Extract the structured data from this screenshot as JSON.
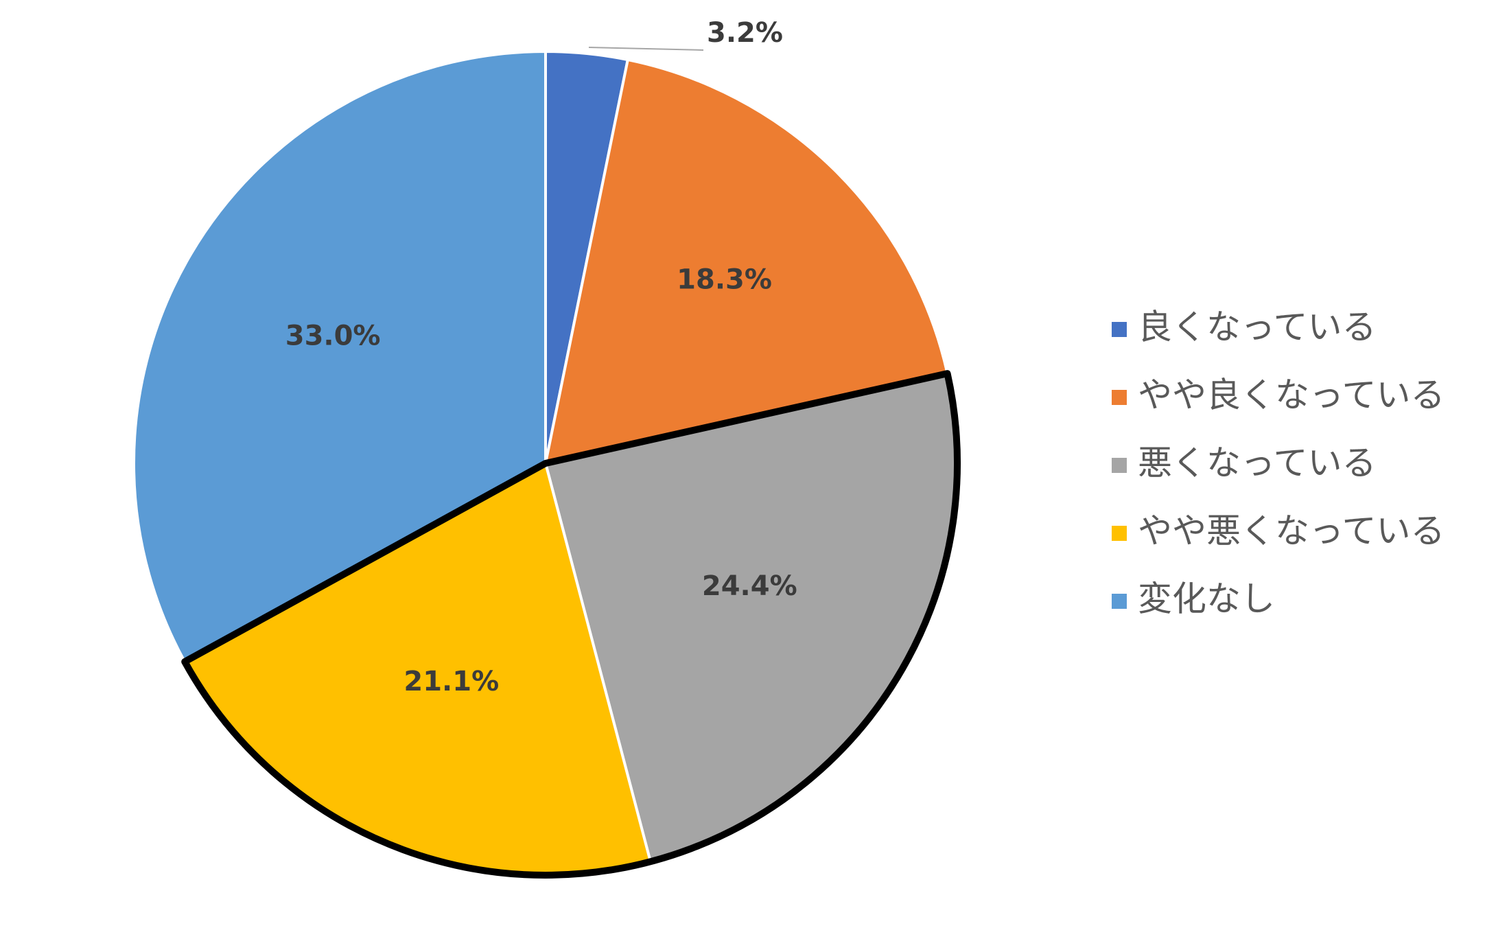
{
  "chart_data": {
    "type": "pie",
    "title": "",
    "slices": [
      {
        "label": "良くなっている",
        "value": 3.2,
        "display": "3.2%",
        "color": "#4472C4"
      },
      {
        "label": "やや良くなっている",
        "value": 18.3,
        "display": "18.3%",
        "color": "#ED7D31"
      },
      {
        "label": "悪くなっている",
        "value": 24.4,
        "display": "24.4%",
        "color": "#A5A5A5"
      },
      {
        "label": "やや悪くなっている",
        "value": 21.1,
        "display": "21.1%",
        "color": "#FFC000"
      },
      {
        "label": "変化なし",
        "value": 33.0,
        "display": "33.0%",
        "color": "#5B9BD5"
      }
    ],
    "start_angle": "12 o'clock",
    "direction": "clockwise",
    "highlighted_slices": [
      "悪くなっている",
      "やや悪くなっている"
    ],
    "highlight_color": "#000000",
    "legend_position": "right"
  }
}
